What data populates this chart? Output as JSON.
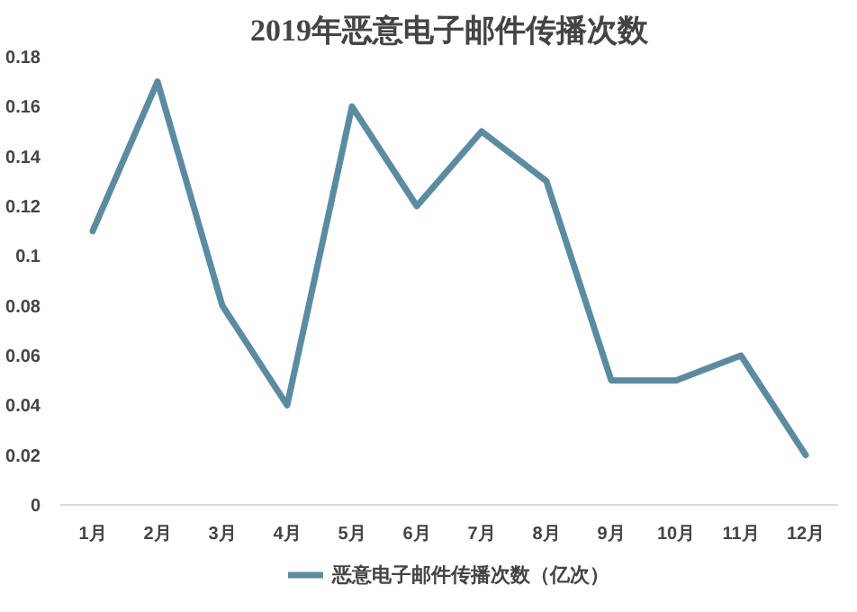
{
  "chart_data": {
    "type": "line",
    "title": "2019年恶意电子邮件传播次数",
    "categories": [
      "1月",
      "2月",
      "3月",
      "4月",
      "5月",
      "6月",
      "7月",
      "8月",
      "9月",
      "10月",
      "11月",
      "12月"
    ],
    "series": [
      {
        "name": "恶意电子邮件传播次数（亿次）",
        "color": "#5b8ba0",
        "values": [
          0.11,
          0.17,
          0.08,
          0.04,
          0.16,
          0.12,
          0.15,
          0.13,
          0.05,
          0.05,
          0.06,
          0.02
        ]
      }
    ],
    "ylim": [
      0,
      0.18
    ],
    "yticks": [
      0,
      0.02,
      0.04,
      0.06,
      0.08,
      0.1,
      0.12,
      0.14,
      0.16,
      0.18
    ],
    "grid": false,
    "legend": "bottom",
    "marker": "none",
    "line_style": "solid"
  }
}
